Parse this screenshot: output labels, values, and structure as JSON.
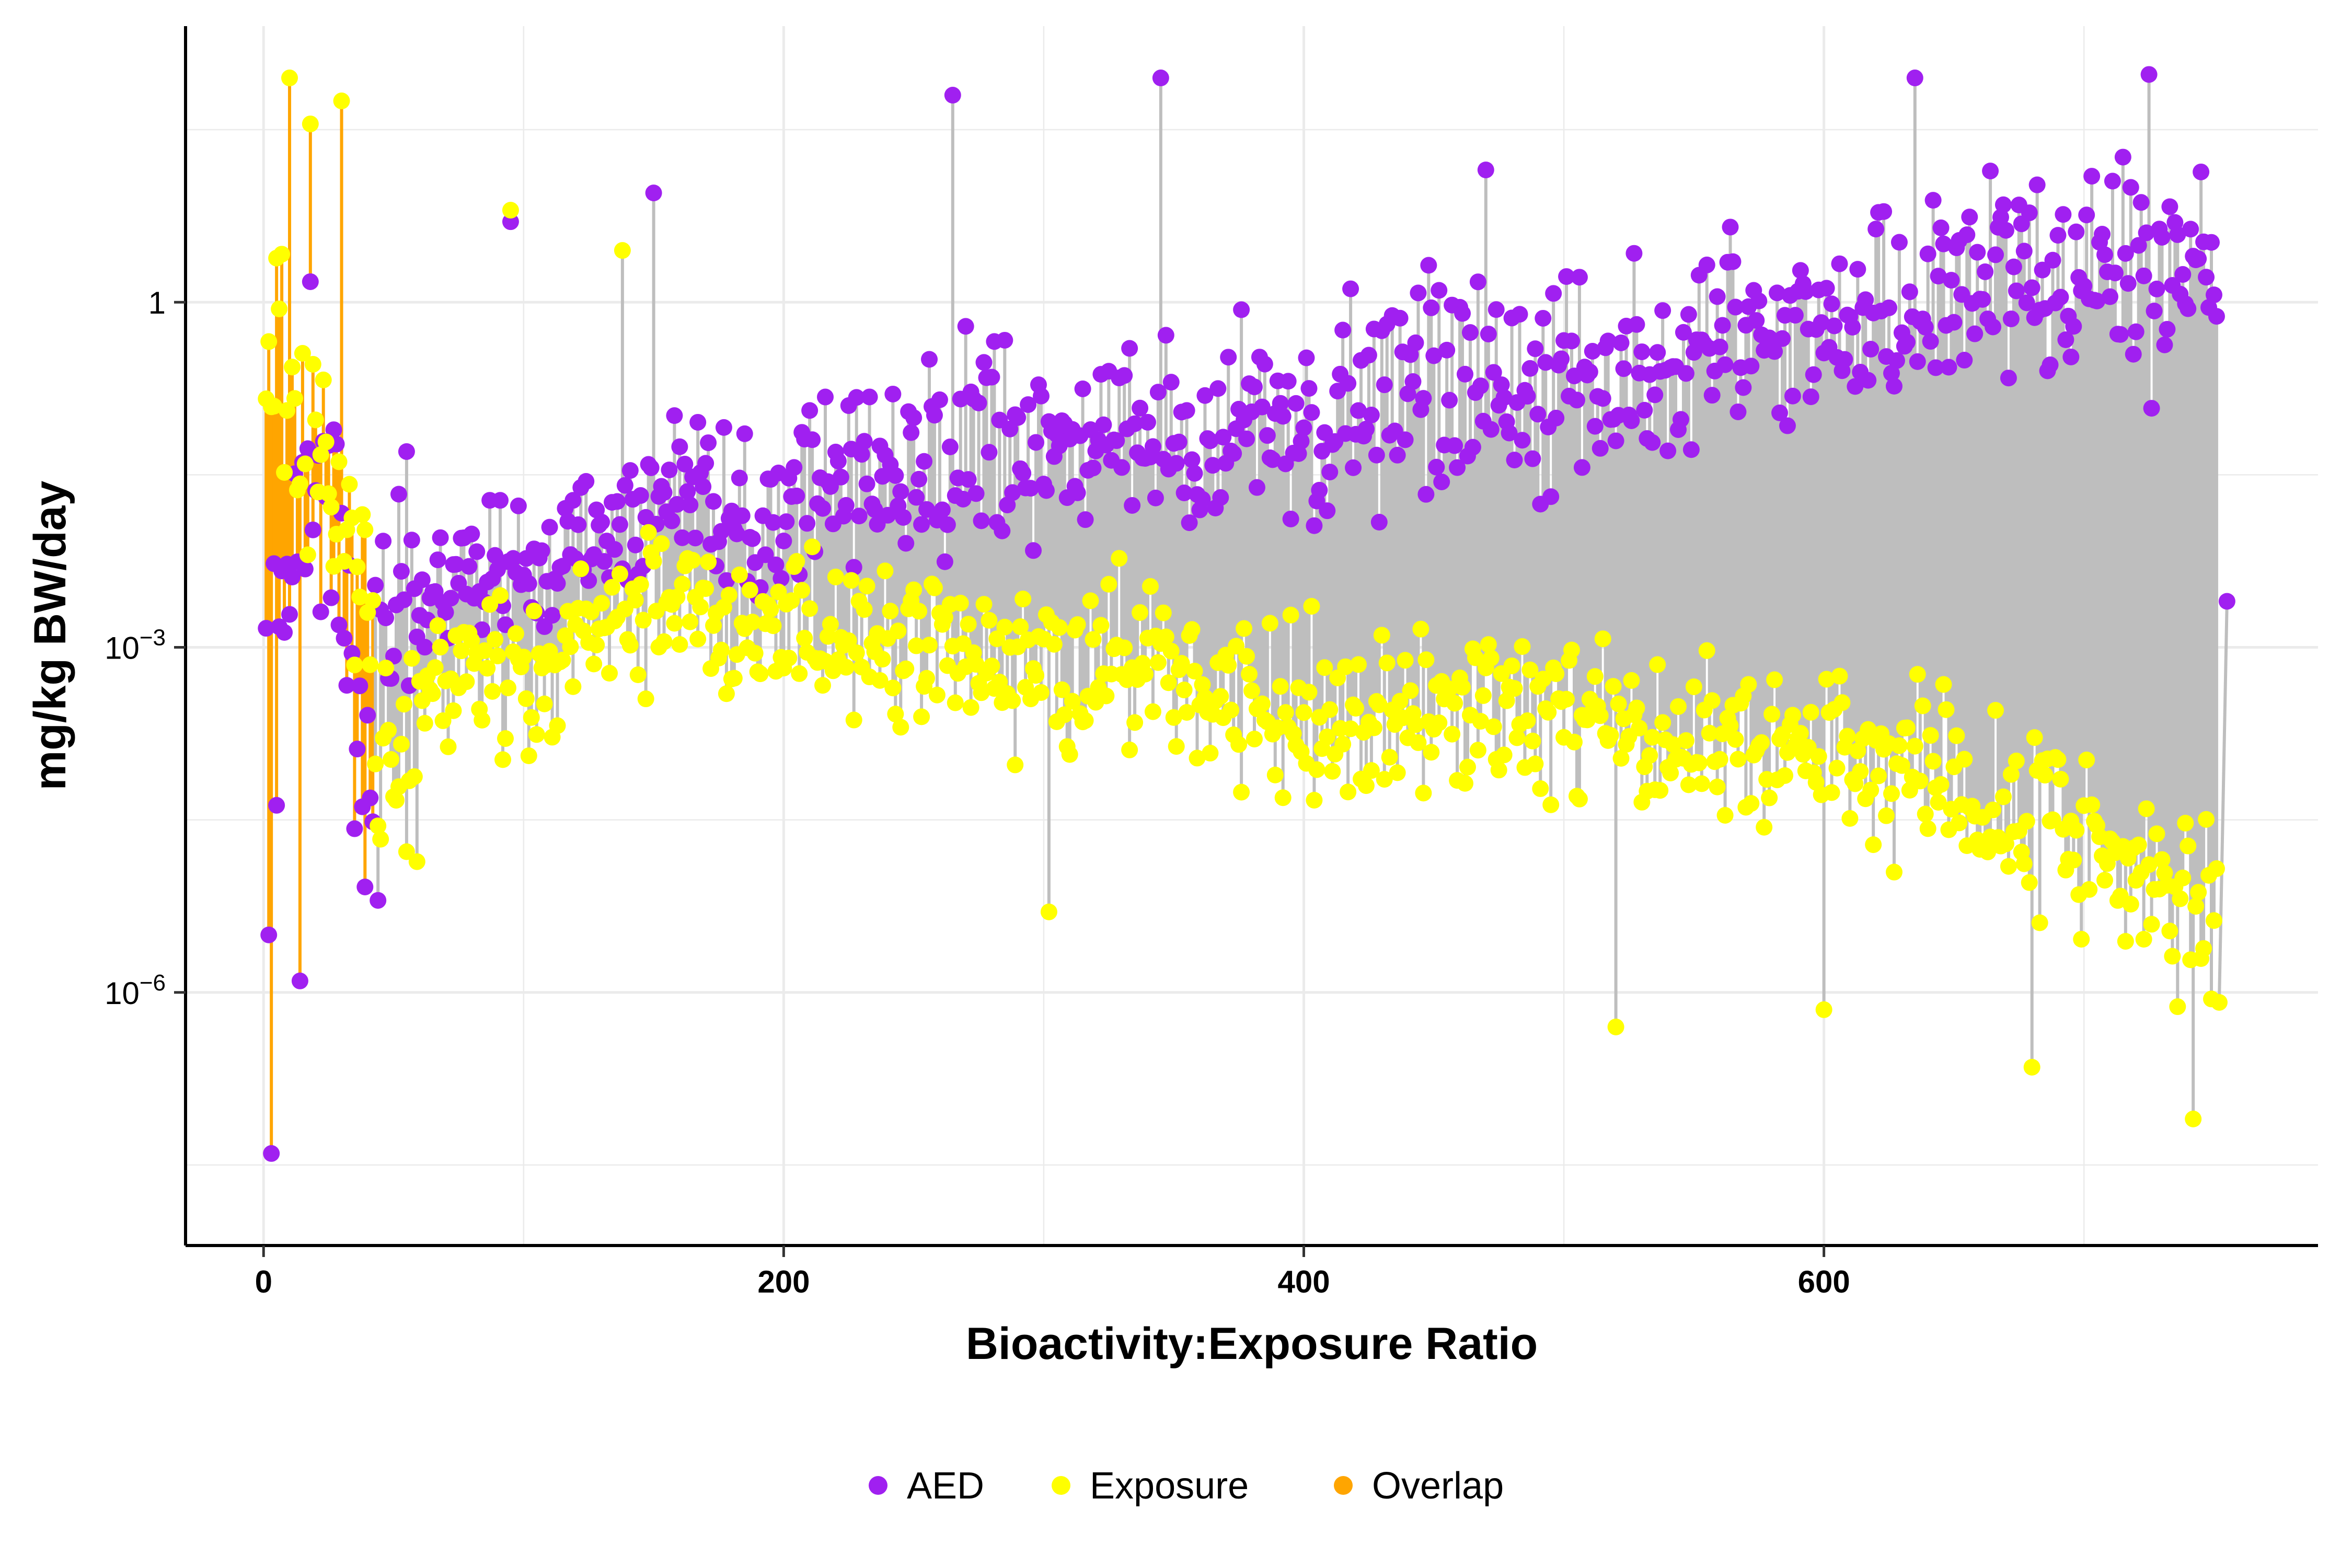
{
  "chart_data": {
    "type": "scatter",
    "title": "",
    "xlabel": "Bioactivity:Exposure Ratio",
    "ylabel": "mg/kg BW/day",
    "xlim": [
      -30,
      790
    ],
    "ylim_log10": [
      -8.2,
      2.4
    ],
    "y_scale": "log10",
    "grid": true,
    "legend_placement": "bottom",
    "x_ticks": [
      {
        "value": 0,
        "label": "0"
      },
      {
        "value": 200,
        "label": "200"
      },
      {
        "value": 400,
        "label": "400"
      },
      {
        "value": 600,
        "label": "600"
      }
    ],
    "y_ticks": [
      {
        "log10": 0,
        "base": "1",
        "exp": ""
      },
      {
        "log10": -3,
        "base": "10",
        "exp": "−3"
      },
      {
        "log10": -6,
        "base": "10",
        "exp": "−6"
      }
    ],
    "colors": {
      "AED": "#a020f0",
      "Exposure": "#ffff00",
      "Overlap": "#ffa500",
      "segment": "#bebebe"
    },
    "series": [
      {
        "name": "AED"
      },
      {
        "name": "Exposure"
      },
      {
        "name": "Overlap"
      }
    ],
    "n_points": 752,
    "overlap_until": 42,
    "anchors_aed_log10": [
      [
        0,
        -3.5
      ],
      [
        10,
        -2.0
      ],
      [
        20,
        -1.5
      ],
      [
        30,
        -2.4
      ],
      [
        40,
        -4.2
      ],
      [
        50,
        -3.8
      ],
      [
        60,
        -3.3
      ],
      [
        80,
        -2.5
      ],
      [
        100,
        -3.4
      ],
      [
        120,
        -2.5
      ],
      [
        150,
        -2.0
      ],
      [
        200,
        -1.8
      ],
      [
        250,
        -1.3
      ],
      [
        300,
        -1.1
      ],
      [
        350,
        -1.0
      ],
      [
        400,
        -1.1
      ],
      [
        450,
        -0.8
      ],
      [
        500,
        -0.6
      ],
      [
        550,
        -0.5
      ],
      [
        600,
        -0.2
      ],
      [
        650,
        0.05
      ],
      [
        700,
        0.25
      ],
      [
        752,
        0.2
      ]
    ],
    "anchors_exp_log10": [
      [
        0,
        -0.5
      ],
      [
        10,
        -1.0
      ],
      [
        20,
        -1.5
      ],
      [
        30,
        -2.0
      ],
      [
        40,
        -2.5
      ],
      [
        50,
        -2.8
      ],
      [
        80,
        -2.7
      ],
      [
        120,
        -2.4
      ],
      [
        150,
        -2.5
      ],
      [
        200,
        -2.8
      ],
      [
        250,
        -3.0
      ],
      [
        300,
        -3.2
      ],
      [
        350,
        -3.3
      ],
      [
        400,
        -3.5
      ],
      [
        450,
        -3.6
      ],
      [
        500,
        -3.6
      ],
      [
        550,
        -3.9
      ],
      [
        600,
        -3.9
      ],
      [
        650,
        -4.2
      ],
      [
        700,
        -4.6
      ],
      [
        752,
        -5.4
      ]
    ],
    "highlights": [
      {
        "series": "AED",
        "x": 3,
        "log10": -7.4
      },
      {
        "series": "AED",
        "x": 2,
        "log10": -5.5
      },
      {
        "series": "AED",
        "x": 14,
        "log10": -5.9
      },
      {
        "series": "AED",
        "x": 44,
        "log10": -5.2
      },
      {
        "series": "AED",
        "x": 95,
        "log10": 0.7
      },
      {
        "series": "AED",
        "x": 150,
        "log10": 0.95
      },
      {
        "series": "AED",
        "x": 265,
        "log10": 1.8
      },
      {
        "series": "AED",
        "x": 345,
        "log10": 1.95
      },
      {
        "series": "AED",
        "x": 470,
        "log10": 1.15
      },
      {
        "series": "AED",
        "x": 635,
        "log10": 1.95
      },
      {
        "series": "AED",
        "x": 725,
        "log10": 1.98
      },
      {
        "series": "AED",
        "x": 755,
        "log10": -2.6
      },
      {
        "series": "Exposure",
        "x": 10,
        "log10": 1.95
      },
      {
        "series": "Exposure",
        "x": 18,
        "log10": 1.55
      },
      {
        "series": "Exposure",
        "x": 30,
        "log10": 1.75
      },
      {
        "series": "Exposure",
        "x": 95,
        "log10": 0.8
      },
      {
        "series": "Exposure",
        "x": 138,
        "log10": 0.45
      },
      {
        "series": "Exposure",
        "x": 302,
        "log10": -5.3
      },
      {
        "series": "Exposure",
        "x": 600,
        "log10": -6.15
      },
      {
        "series": "Exposure",
        "x": 520,
        "log10": -6.3
      },
      {
        "series": "Exposure",
        "x": 680,
        "log10": -6.65
      },
      {
        "series": "Exposure",
        "x": 742,
        "log10": -7.1
      }
    ]
  }
}
